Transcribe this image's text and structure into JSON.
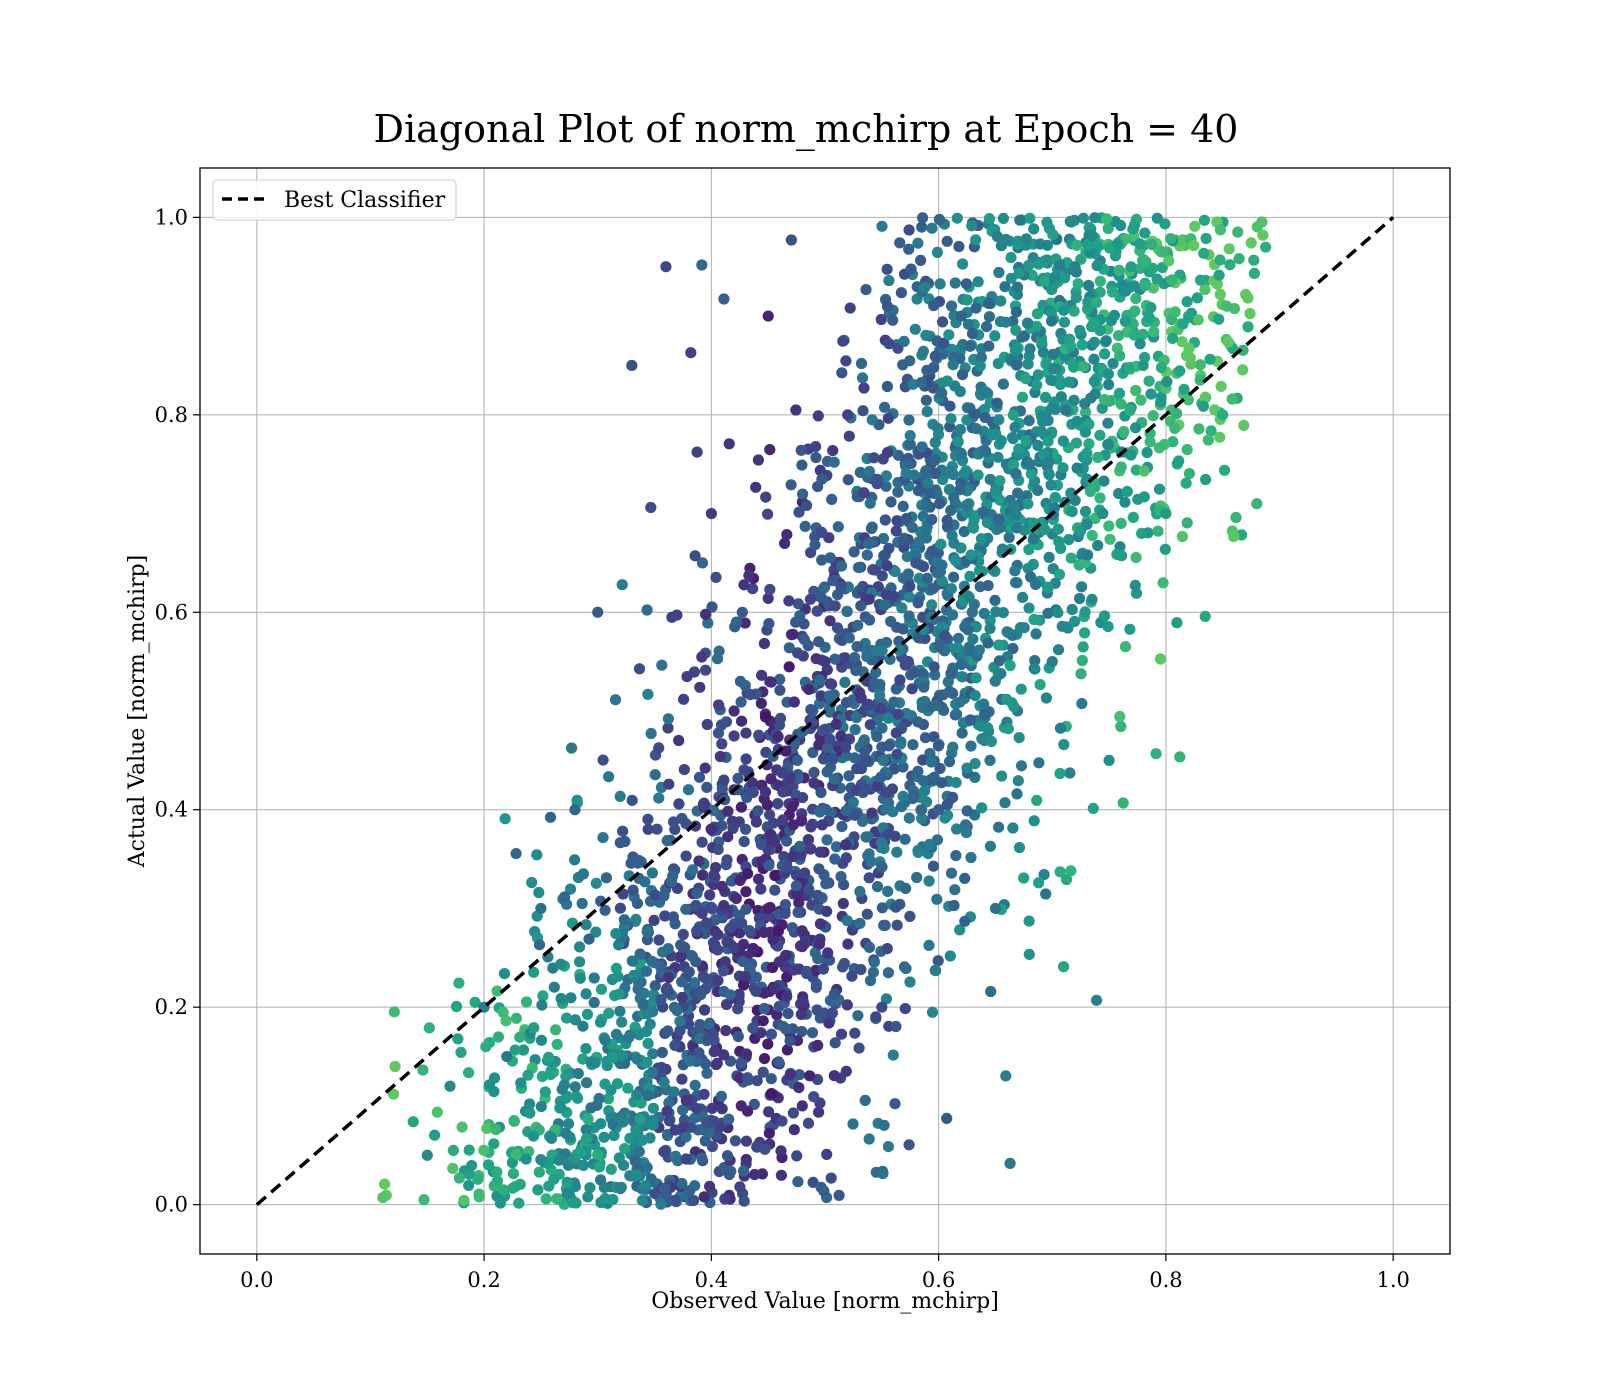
{
  "chart_data": {
    "type": "scatter",
    "title": "Diagonal Plot of norm_mchirp at Epoch = 40",
    "xlabel": "Observed Value [norm_mchirp]",
    "ylabel": "Actual Value [norm_mchirp]",
    "xlim": [
      -0.05,
      1.05
    ],
    "ylim": [
      -0.05,
      1.05
    ],
    "xticks": [
      "0.0",
      "0.2",
      "0.4",
      "0.6",
      "0.8",
      "1.0"
    ],
    "yticks": [
      "0.0",
      "0.2",
      "0.4",
      "0.6",
      "0.8",
      "1.0"
    ],
    "grid": true,
    "legend_position": "top-left",
    "colormap": "viridis",
    "colors": {
      "low": "#440154",
      "mid": "#31688e",
      "high": "#35b779",
      "reference_line": "#000000",
      "grid": "#b0b0b0"
    },
    "series": [
      {
        "type": "scatter",
        "description": "dense point cloud from (0.11-0.89 x, 0.0-1.0 y), lower-left greenish, upper-right teal, centre dark purple",
        "x_range": [
          0.11,
          0.89
        ],
        "y_range": [
          0.0,
          1.0
        ],
        "points": [
          [
            0.15,
            0.05
          ],
          [
            0.17,
            0.12
          ],
          [
            0.2,
            0.2
          ],
          [
            0.22,
            0.15
          ],
          [
            0.25,
            0.3
          ],
          [
            0.28,
            0.4
          ],
          [
            0.3,
            0.6
          ],
          [
            0.33,
            0.85
          ],
          [
            0.36,
            0.95
          ],
          [
            0.4,
            0.7
          ],
          [
            0.42,
            0.5
          ],
          [
            0.45,
            0.3
          ],
          [
            0.45,
            0.9
          ],
          [
            0.48,
            0.1
          ],
          [
            0.5,
            0.55
          ],
          [
            0.52,
            0.8
          ],
          [
            0.55,
            0.2
          ],
          [
            0.58,
            0.65
          ],
          [
            0.6,
            0.4
          ],
          [
            0.62,
            0.9
          ],
          [
            0.65,
            0.3
          ],
          [
            0.68,
            0.75
          ],
          [
            0.7,
            0.55
          ],
          [
            0.72,
            0.95
          ],
          [
            0.75,
            0.45
          ],
          [
            0.78,
            0.85
          ],
          [
            0.8,
            0.7
          ],
          [
            0.82,
            0.9
          ],
          [
            0.85,
            0.8
          ],
          [
            0.88,
            0.71
          ]
        ]
      },
      {
        "name": "Best Classifier",
        "type": "line",
        "style": "dashed",
        "x": [
          0.0,
          1.0
        ],
        "y": [
          0.0,
          1.0
        ]
      }
    ]
  }
}
